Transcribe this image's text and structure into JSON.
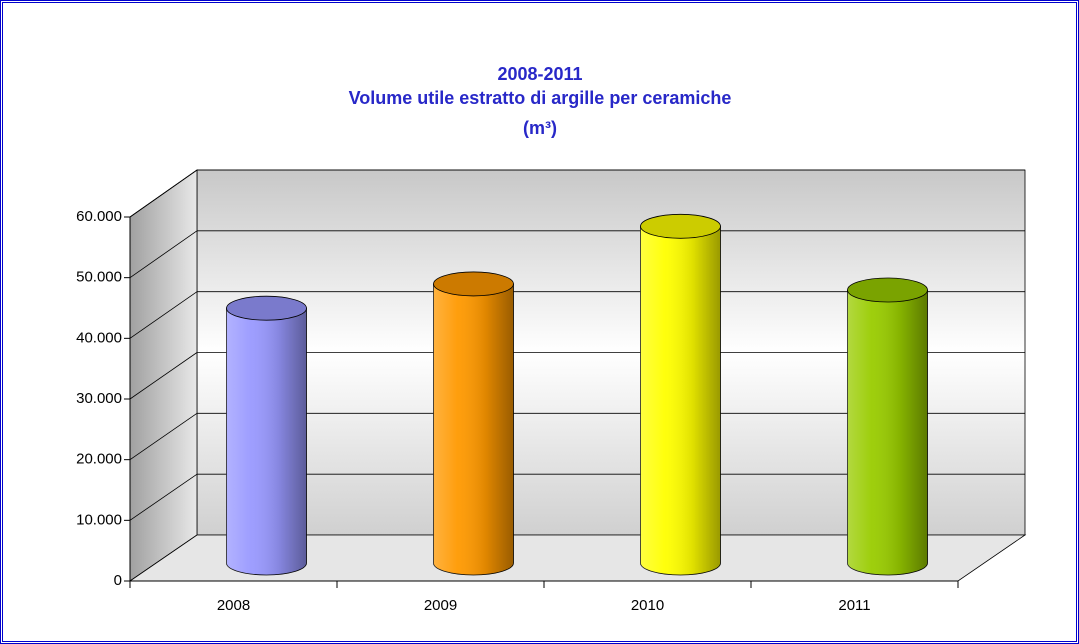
{
  "chart_data": {
    "type": "bar3d",
    "title": [
      "2008-2011",
      "Volume utile estratto di argille per ceramiche",
      "(m³)"
    ],
    "categories": [
      "2008",
      "2009",
      "2010",
      "2011"
    ],
    "values": [
      42000,
      46000,
      55500,
      45000
    ],
    "colors": [
      "#9999ff",
      "#ff9900",
      "#ffff00",
      "#99cc00"
    ],
    "ylim": [
      0,
      60000
    ],
    "yticks": [
      0,
      {
        "value": 10000,
        "label": "10.000"
      },
      {
        "value": 20000,
        "label": "20.000"
      },
      {
        "value": 30000,
        "label": "30.000"
      },
      {
        "value": 40000,
        "label": "40.000"
      },
      {
        "value": 50000,
        "label": "50.000"
      },
      {
        "value": 60000,
        "label": "60.000"
      }
    ],
    "grid": true
  }
}
